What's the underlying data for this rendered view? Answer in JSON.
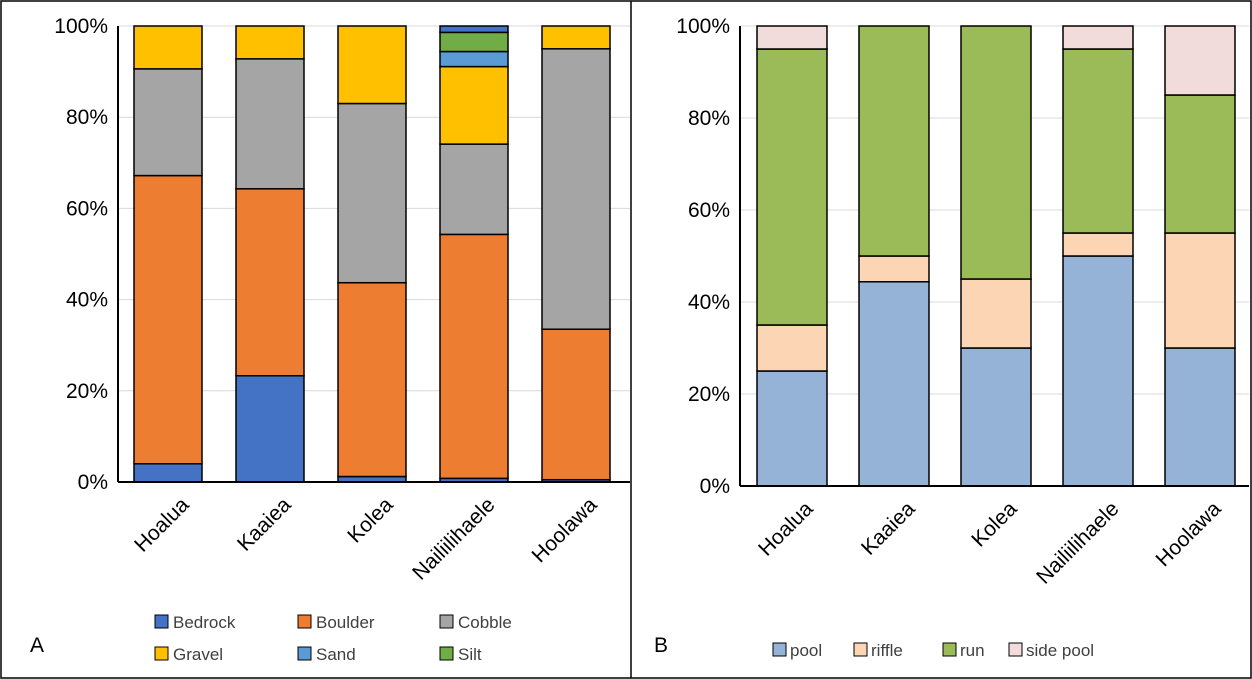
{
  "chart_data": [
    {
      "type": "bar",
      "stacked": true,
      "panel_label": "A",
      "categories": [
        "Hoalua",
        "Kaaiea",
        "Kolea",
        "Nailiilihaele",
        "Hoolawa"
      ],
      "yticks": [
        "0%",
        "20%",
        "40%",
        "60%",
        "80%",
        "100%"
      ],
      "ylim": [
        0,
        100
      ],
      "grid": true,
      "legend_position": "bottom",
      "series": [
        {
          "name": "Bedrock",
          "color": "#4472C4",
          "values": [
            4,
            23.3,
            1.2,
            0.8,
            0.5
          ]
        },
        {
          "name": "Boulder",
          "color": "#ED7D31",
          "values": [
            63.2,
            41,
            42.5,
            53.5,
            33
          ]
        },
        {
          "name": "Cobble",
          "color": "#A5A5A5",
          "values": [
            23.4,
            28.5,
            39.3,
            19.8,
            61.5
          ]
        },
        {
          "name": "Gravel",
          "color": "#FFC000",
          "values": [
            9.4,
            7.2,
            17,
            17,
            5
          ]
        },
        {
          "name": "Sand",
          "color": "#5B9BD5",
          "values": [
            0,
            0,
            0,
            3.3,
            0
          ]
        },
        {
          "name": "Silt",
          "color": "#70AD47",
          "values": [
            0,
            0,
            0,
            4.2,
            0
          ]
        },
        {
          "name": "",
          "color": "#4472C4",
          "values": [
            0,
            0,
            0,
            1.4,
            0
          ]
        }
      ]
    },
    {
      "type": "bar",
      "stacked": true,
      "panel_label": "B",
      "categories": [
        "Hoalua",
        "Kaaiea",
        "Kolea",
        "Nailiilihaele",
        "Hoolawa"
      ],
      "yticks": [
        "0%",
        "20%",
        "40%",
        "60%",
        "80%",
        "100%"
      ],
      "ylim": [
        0,
        100
      ],
      "grid": true,
      "legend_position": "bottom",
      "series": [
        {
          "name": "pool",
          "color": "#95B3D7",
          "values": [
            25,
            44.4,
            30,
            50,
            30
          ]
        },
        {
          "name": "riffle",
          "color": "#FCD5B5",
          "values": [
            10,
            5.6,
            15,
            5,
            25
          ]
        },
        {
          "name": "run",
          "color": "#9BBB59",
          "values": [
            60,
            50,
            55,
            40,
            30
          ]
        },
        {
          "name": "side pool",
          "color": "#F2DCDB",
          "values": [
            5,
            0,
            0,
            5,
            15
          ]
        }
      ]
    }
  ]
}
